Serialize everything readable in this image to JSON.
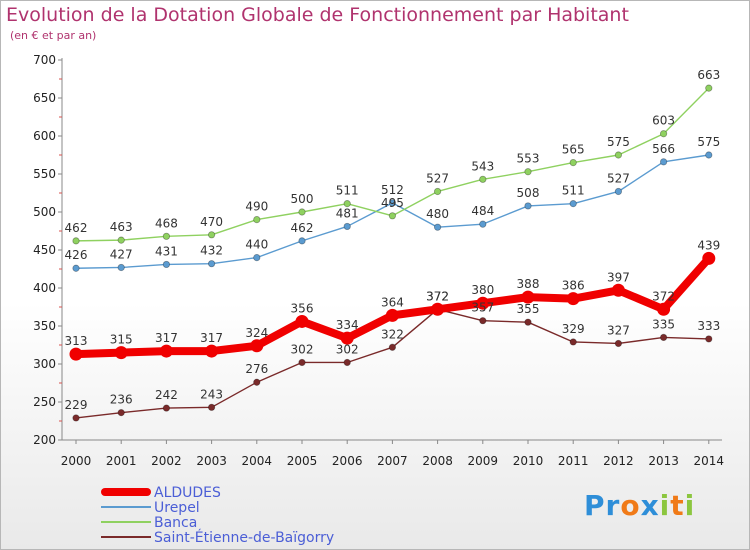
{
  "title": "Evolution de la Dotation Globale de Fonctionnement par Habitant",
  "subtitle": "(en € et par an)",
  "logo": {
    "text": "Proxiti",
    "letters": [
      "P",
      "r",
      "o",
      "x",
      "i",
      "t",
      "i"
    ],
    "colors": [
      "#2e8ed8",
      "#2e8ed8",
      "#f07a17",
      "#2e8ed8",
      "#8cc63f",
      "#f07a17",
      "#8cc63f"
    ]
  },
  "chart_data": {
    "type": "line",
    "x": [
      "2000",
      "2001",
      "2002",
      "2003",
      "2004",
      "2005",
      "2006",
      "2007",
      "2008",
      "2009",
      "2010",
      "2011",
      "2012",
      "2013",
      "2014"
    ],
    "ylim": [
      200,
      700
    ],
    "yticks": [
      "200",
      "250",
      "300",
      "350",
      "400",
      "450",
      "500",
      "550",
      "600",
      "650",
      "700"
    ],
    "grid": false,
    "legend_position": "bottom-left",
    "series": [
      {
        "name": "ALDUDES",
        "color": "#f00000",
        "emphasis": true,
        "values": [
          313,
          315,
          317,
          317,
          324,
          356,
          334,
          364,
          372,
          380,
          388,
          386,
          397,
          372,
          439
        ],
        "labels": [
          "313",
          "315",
          "317",
          "317",
          "324",
          "356",
          "334",
          "364",
          "372",
          "380",
          "388",
          "386",
          "397",
          "372",
          "439"
        ]
      },
      {
        "name": "Urepel",
        "color": "#5b9bd0",
        "emphasis": false,
        "values": [
          426,
          427,
          431,
          432,
          440,
          462,
          481,
          512,
          480,
          484,
          508,
          511,
          527,
          566,
          575
        ],
        "labels": [
          "426",
          "427",
          "431",
          "432",
          "440",
          "462",
          "481",
          "512",
          "480",
          "484",
          "508",
          "511",
          "527",
          "566",
          "575"
        ]
      },
      {
        "name": "Banca",
        "color": "#8fd160",
        "emphasis": false,
        "values": [
          462,
          463,
          468,
          470,
          490,
          500,
          511,
          495,
          527,
          543,
          553,
          565,
          575,
          603,
          663
        ],
        "labels": [
          "462",
          "463",
          "468",
          "470",
          "490",
          "500",
          "511",
          "495",
          "527",
          "543",
          "553",
          "565",
          "575",
          "603",
          "663"
        ]
      },
      {
        "name": "Saint-Étienne-de-Baïgorry",
        "color": "#7a2a2a",
        "emphasis": false,
        "values": [
          229,
          236,
          242,
          243,
          276,
          302,
          302,
          322,
          372,
          357,
          355,
          329,
          327,
          335,
          333
        ],
        "labels": [
          "229",
          "236",
          "242",
          "243",
          "276",
          "302",
          "302",
          "322",
          "372",
          "357",
          "355",
          "329",
          "327",
          "335",
          "333"
        ]
      }
    ]
  }
}
